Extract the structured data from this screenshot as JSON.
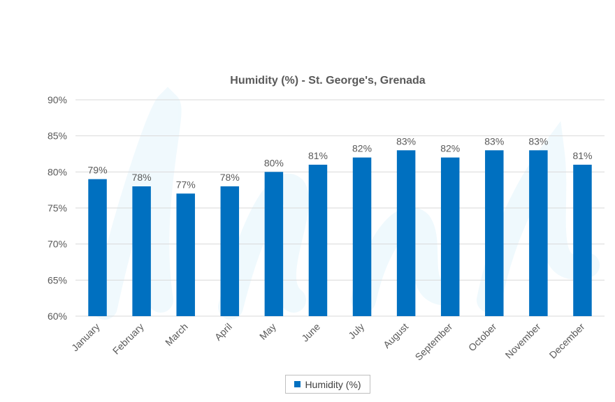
{
  "chart_data": {
    "type": "bar",
    "title": "Humidity (%) - St. George's, Grenada",
    "categories": [
      "January",
      "February",
      "March",
      "April",
      "May",
      "June",
      "July",
      "August",
      "September",
      "October",
      "November",
      "December"
    ],
    "series": [
      {
        "name": "Humidity (%)",
        "values": [
          79,
          78,
          77,
          78,
          80,
          81,
          82,
          83,
          82,
          83,
          83,
          81
        ],
        "labels": [
          "79%",
          "78%",
          "77%",
          "78%",
          "80%",
          "81%",
          "82%",
          "83%",
          "82%",
          "83%",
          "83%",
          "81%"
        ]
      }
    ],
    "ylim": [
      60,
      90
    ],
    "yticks": [
      60,
      65,
      70,
      75,
      80,
      85,
      90
    ],
    "ytick_labels": [
      "60%",
      "65%",
      "70%",
      "75%",
      "80%",
      "85%",
      "90%"
    ],
    "xlabel": "",
    "ylabel": "",
    "grid": true,
    "legend_position": "bottom"
  },
  "colors": {
    "bar": "#0070C0",
    "grid": "#d9d9d9",
    "text": "#595959",
    "title": "#595959"
  }
}
